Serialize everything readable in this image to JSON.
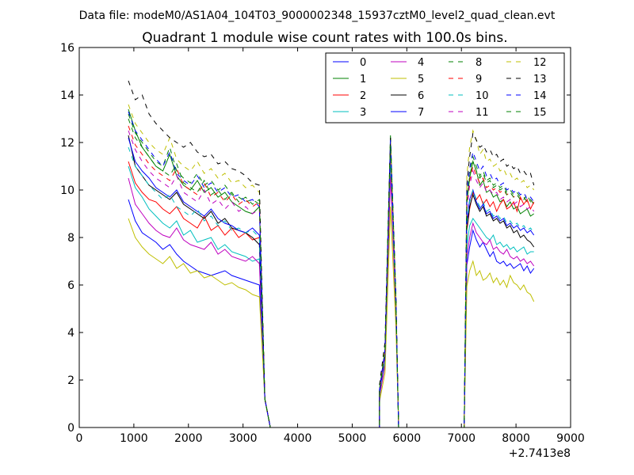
{
  "suptitle": "Data file: modeM0/AS1A04_104T03_9000002348_15937cztM0_level2_quad_clean.evt",
  "chart_data": {
    "type": "line",
    "title": "Quadrant 1 module wise count rates with 100.0s bins.",
    "xlabel": "",
    "ylabel": "",
    "x_offset_label": "+2.7413e8",
    "xlim": [
      0,
      9000
    ],
    "ylim": [
      0,
      16
    ],
    "xticks": [
      0,
      1000,
      2000,
      3000,
      4000,
      5000,
      6000,
      7000,
      8000,
      9000
    ],
    "yticks": [
      0,
      2,
      4,
      6,
      8,
      10,
      12,
      14,
      16
    ],
    "grid": false,
    "legend_position": "top-right",
    "legend_columns": 4,
    "gaps": [
      [
        3500,
        5500
      ],
      [
        5850,
        7050
      ]
    ],
    "spike": {
      "x": [
        5500,
        5600,
        5700,
        5800,
        5850
      ]
    },
    "series": [
      {
        "name": "0",
        "color": "#0000ff",
        "dash": "solid",
        "seg1": [
          9.6,
          8.7,
          8.2,
          8.0,
          7.8,
          7.5,
          7.7,
          7.3,
          7.0,
          6.8,
          6.6,
          6.5,
          6.4,
          6.5,
          6.6,
          6.4,
          6.3,
          6.2,
          6.1,
          6.0
        ],
        "spike": [
          1.4,
          3.0,
          11.0,
          5.0,
          0.0
        ],
        "seg3": [
          7.6,
          8.3,
          7.9,
          7.6,
          7.8,
          7.5,
          7.2,
          7.4,
          7.0,
          6.9,
          7.0,
          6.8,
          6.9,
          6.7,
          6.8,
          6.9,
          6.6,
          6.8,
          6.5,
          6.7
        ]
      },
      {
        "name": "1",
        "color": "#008000",
        "dash": "solid",
        "seg1": [
          13.4,
          12.5,
          11.8,
          11.4,
          11.0,
          10.8,
          11.5,
          10.6,
          10.2,
          10.0,
          10.4,
          9.9,
          10.1,
          9.7,
          9.9,
          9.5,
          9.3,
          9.1,
          9.0,
          9.3
        ],
        "spike": [
          1.6,
          3.2,
          12.3,
          5.4,
          0.0
        ],
        "seg3": [
          10.5,
          11.2,
          10.8,
          10.2,
          10.4,
          9.9,
          10.0,
          9.7,
          9.8,
          9.5,
          9.6,
          9.3,
          9.5,
          9.2,
          9.3,
          9.0,
          9.1,
          9.2,
          8.9,
          9.0
        ]
      },
      {
        "name": "2",
        "color": "#ff0000",
        "dash": "solid",
        "seg1": [
          11.2,
          10.3,
          9.9,
          9.6,
          9.5,
          9.2,
          9.0,
          9.3,
          8.8,
          8.6,
          8.4,
          8.9,
          8.3,
          8.5,
          8.1,
          8.4,
          8.0,
          8.2,
          7.9,
          8.0
        ],
        "spike": [
          1.4,
          2.9,
          11.8,
          5.2,
          0.0
        ],
        "seg3": [
          9.2,
          9.9,
          9.6,
          9.8,
          9.4,
          9.6,
          9.3,
          9.5,
          9.1,
          9.4,
          9.6,
          9.2,
          9.3,
          9.5,
          9.1,
          9.7,
          9.4,
          9.6,
          9.2,
          9.5
        ]
      },
      {
        "name": "3",
        "color": "#00bfbf",
        "dash": "solid",
        "seg1": [
          11.0,
          10.1,
          9.7,
          9.2,
          8.9,
          8.6,
          8.4,
          8.7,
          8.1,
          8.3,
          7.8,
          7.9,
          8.0,
          7.5,
          7.7,
          7.4,
          7.3,
          7.2,
          7.0,
          7.1
        ],
        "spike": [
          1.3,
          2.7,
          10.9,
          4.9,
          0.0
        ],
        "seg3": [
          8.5,
          8.8,
          8.6,
          8.4,
          8.2,
          8.0,
          7.9,
          8.1,
          7.7,
          7.8,
          7.6,
          7.7,
          7.5,
          7.6,
          7.4,
          7.5,
          7.6,
          7.3,
          7.4,
          7.4
        ]
      },
      {
        "name": "4",
        "color": "#bf00bf",
        "dash": "solid",
        "seg1": [
          10.5,
          9.4,
          9.0,
          8.6,
          8.3,
          8.1,
          8.0,
          8.4,
          7.9,
          7.7,
          7.6,
          7.5,
          7.8,
          7.3,
          7.5,
          7.2,
          7.1,
          7.0,
          7.2,
          6.9
        ],
        "spike": [
          1.3,
          2.6,
          10.6,
          4.8,
          0.0
        ],
        "seg3": [
          8.0,
          8.6,
          8.2,
          8.0,
          7.8,
          7.7,
          7.9,
          7.5,
          7.6,
          7.4,
          7.3,
          7.5,
          7.2,
          7.1,
          7.2,
          7.0,
          7.1,
          6.9,
          7.0,
          6.8
        ]
      },
      {
        "name": "5",
        "color": "#bfbf00",
        "dash": "solid",
        "seg1": [
          8.8,
          8.0,
          7.6,
          7.3,
          7.1,
          6.9,
          7.2,
          6.7,
          6.9,
          6.5,
          6.6,
          6.3,
          6.4,
          6.2,
          6.0,
          6.1,
          5.9,
          5.8,
          5.6,
          5.5
        ],
        "spike": [
          1.1,
          2.3,
          9.3,
          4.2,
          0.0
        ],
        "seg3": [
          6.6,
          7.0,
          6.4,
          6.6,
          6.2,
          6.3,
          6.5,
          6.1,
          6.3,
          6.0,
          6.2,
          5.9,
          6.4,
          6.1,
          6.0,
          5.8,
          6.0,
          5.7,
          5.6,
          5.3
        ]
      },
      {
        "name": "6",
        "color": "#000000",
        "dash": "solid",
        "seg1": [
          12.3,
          11.0,
          10.6,
          10.2,
          10.0,
          9.8,
          9.6,
          9.9,
          9.4,
          9.2,
          9.0,
          8.8,
          9.1,
          8.6,
          8.8,
          8.4,
          8.3,
          8.2,
          8.0,
          7.7
        ],
        "spike": [
          1.5,
          3.1,
          11.9,
          5.1,
          0.0
        ],
        "seg3": [
          9.3,
          9.8,
          9.4,
          9.1,
          9.3,
          8.9,
          9.0,
          8.7,
          8.8,
          8.6,
          8.7,
          8.4,
          8.5,
          8.2,
          8.3,
          8.0,
          8.1,
          7.9,
          7.8,
          7.6
        ]
      },
      {
        "name": "7",
        "color": "#0000ff",
        "dash": "solid",
        "seg1": [
          12.2,
          11.2,
          10.8,
          10.5,
          10.1,
          9.9,
          9.7,
          10.0,
          9.5,
          9.3,
          9.1,
          8.9,
          9.2,
          8.8,
          8.6,
          8.5,
          8.3,
          8.2,
          8.4,
          8.1
        ],
        "spike": [
          1.5,
          3.0,
          12.0,
          5.2,
          0.0
        ],
        "seg3": [
          9.6,
          10.0,
          9.5,
          9.2,
          9.4,
          9.0,
          9.1,
          8.8,
          8.9,
          8.7,
          8.8,
          8.5,
          8.6,
          8.4,
          8.5,
          8.3,
          8.4,
          8.2,
          8.3,
          8.1
        ]
      },
      {
        "name": "8",
        "color": "#008000",
        "dash": "dashed",
        "seg1": [
          13.2,
          12.4,
          12.0,
          11.6,
          11.2,
          11.0,
          11.8,
          10.8,
          10.5,
          10.3,
          10.7,
          10.2,
          10.4,
          10.0,
          10.2,
          9.8,
          9.7,
          9.5,
          9.6,
          9.4
        ],
        "spike": [
          1.6,
          3.3,
          12.2,
          5.4,
          0.0
        ],
        "seg3": [
          10.8,
          11.4,
          11.0,
          10.6,
          10.8,
          10.4,
          10.5,
          10.2,
          10.3,
          10.1,
          10.2,
          9.9,
          10.0,
          9.8,
          9.9,
          9.7,
          9.6,
          9.8,
          9.5,
          9.6
        ]
      },
      {
        "name": "9",
        "color": "#ff0000",
        "dash": "dashed",
        "seg1": [
          12.7,
          11.9,
          11.5,
          11.1,
          10.8,
          10.6,
          10.4,
          10.9,
          10.2,
          10.0,
          9.8,
          10.3,
          9.7,
          9.9,
          9.5,
          9.8,
          9.4,
          9.6,
          9.3,
          9.5
        ],
        "spike": [
          1.6,
          3.2,
          12.0,
          5.3,
          0.0
        ],
        "seg3": [
          10.4,
          11.0,
          10.6,
          10.3,
          10.5,
          10.1,
          10.2,
          10.0,
          10.1,
          9.9,
          10.0,
          9.8,
          9.9,
          9.7,
          9.8,
          9.6,
          9.7,
          9.5,
          9.6,
          9.4
        ]
      },
      {
        "name": "10",
        "color": "#00bfbf",
        "dash": "dashed",
        "seg1": [
          11.8,
          11.0,
          10.6,
          10.2,
          9.9,
          9.6,
          9.8,
          9.3,
          9.1,
          8.9,
          9.2,
          8.7,
          8.9,
          8.5,
          8.7,
          8.3,
          8.4,
          8.2,
          8.3,
          8.0
        ],
        "spike": [
          1.4,
          2.9,
          11.4,
          5.0,
          0.0
        ],
        "seg3": [
          9.5,
          10.0,
          9.6,
          9.3,
          9.5,
          9.1,
          9.2,
          8.9,
          9.0,
          8.8,
          8.9,
          8.6,
          8.7,
          8.5,
          8.6,
          8.4,
          8.5,
          8.3,
          8.4,
          8.2
        ]
      },
      {
        "name": "11",
        "color": "#bf00bf",
        "dash": "dashed",
        "seg1": [
          12.5,
          11.7,
          11.2,
          10.8,
          10.5,
          10.3,
          10.1,
          10.6,
          9.9,
          9.7,
          9.5,
          10.0,
          9.4,
          9.6,
          9.2,
          9.5,
          9.1,
          9.3,
          9.0,
          9.2
        ],
        "spike": [
          1.5,
          3.1,
          11.7,
          5.2,
          0.0
        ],
        "seg3": [
          10.2,
          10.8,
          10.4,
          10.1,
          10.3,
          9.9,
          10.0,
          9.8,
          9.9,
          9.6,
          9.7,
          9.5,
          9.6,
          9.4,
          9.5,
          9.3,
          9.4,
          9.2,
          9.3,
          9.1
        ]
      },
      {
        "name": "12",
        "color": "#bfbf00",
        "dash": "dashed",
        "seg1": [
          13.6,
          12.8,
          12.4,
          12.0,
          11.7,
          11.5,
          12.2,
          11.3,
          11.0,
          10.8,
          11.2,
          10.7,
          10.9,
          10.5,
          10.7,
          10.3,
          10.4,
          10.1,
          10.2,
          9.9
        ],
        "spike": [
          1.7,
          3.4,
          12.1,
          5.5,
          0.0
        ],
        "seg3": [
          11.8,
          12.5,
          12.1,
          11.5,
          11.7,
          11.2,
          11.3,
          11.0,
          11.1,
          10.8,
          10.9,
          10.6,
          10.7,
          10.4,
          10.5,
          10.3,
          10.4,
          10.1,
          10.2,
          10.0
        ]
      },
      {
        "name": "13",
        "color": "#000000",
        "dash": "dashed",
        "seg1": [
          14.6,
          13.8,
          14.0,
          13.2,
          12.8,
          12.5,
          12.2,
          12.0,
          11.8,
          12.0,
          11.6,
          11.4,
          11.5,
          11.1,
          11.2,
          10.9,
          10.8,
          10.6,
          10.3,
          10.2
        ],
        "spike": [
          1.8,
          3.6,
          12.2,
          5.6,
          0.0
        ],
        "seg3": [
          11.4,
          12.4,
          12.1,
          11.8,
          11.9,
          11.6,
          11.7,
          11.4,
          11.5,
          11.2,
          11.3,
          11.0,
          11.1,
          10.9,
          11.0,
          10.7,
          10.8,
          10.6,
          10.7,
          10.2
        ]
      },
      {
        "name": "14",
        "color": "#0000ff",
        "dash": "dashed",
        "seg1": [
          13.3,
          12.5,
          12.1,
          11.7,
          11.3,
          11.0,
          11.6,
          10.7,
          10.4,
          10.2,
          10.6,
          10.1,
          10.3,
          9.9,
          10.1,
          9.7,
          9.8,
          9.5,
          9.6,
          9.3
        ],
        "spike": [
          1.6,
          3.3,
          12.1,
          5.4,
          0.0
        ],
        "seg3": [
          10.9,
          11.6,
          11.2,
          10.8,
          11.0,
          10.6,
          10.7,
          10.4,
          10.5,
          10.2,
          10.3,
          10.0,
          10.1,
          9.9,
          10.0,
          9.8,
          9.9,
          9.6,
          9.7,
          9.5
        ]
      },
      {
        "name": "15",
        "color": "#008000",
        "dash": "dashed",
        "seg1": [
          13.0,
          12.2,
          11.8,
          11.4,
          11.0,
          10.8,
          10.6,
          11.1,
          10.3,
          10.1,
          9.9,
          10.4,
          9.8,
          10.0,
          9.6,
          9.9,
          9.5,
          9.7,
          9.4,
          9.6
        ],
        "spike": [
          1.6,
          3.2,
          11.9,
          5.3,
          0.0
        ],
        "seg3": [
          10.6,
          11.2,
          10.8,
          10.5,
          10.7,
          10.3,
          10.4,
          10.1,
          10.2,
          10.0,
          10.1,
          9.8,
          9.9,
          9.7,
          9.8,
          9.6,
          9.7,
          9.5,
          9.6,
          9.4
        ]
      }
    ]
  }
}
